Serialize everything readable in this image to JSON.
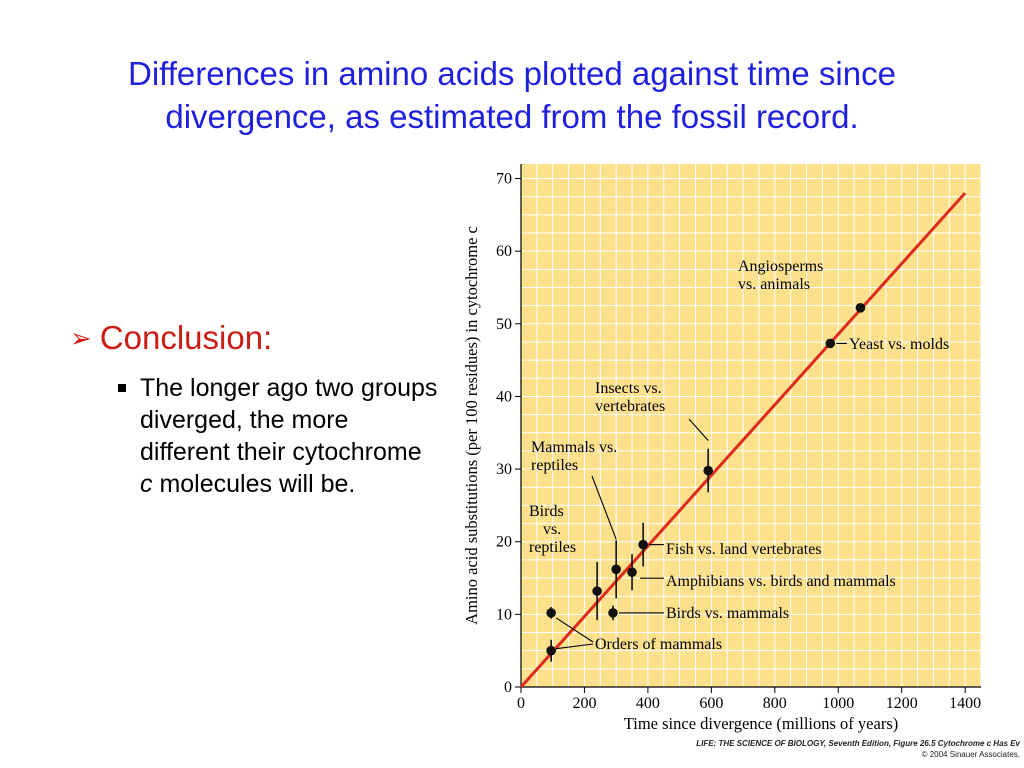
{
  "slide": {
    "title_line1": "Differences in amino acids plotted against time since",
    "title_line2": "divergence, as estimated from the fossil record.",
    "bullet_heading": "Conclusion:",
    "sub_bullet_text": "The longer ago two groups diverged, the more different their cytochrome ",
    "sub_bullet_italic": "c",
    "sub_bullet_end": " molecules will be.",
    "credit_line1": "LIFE: THE SCIENCE OF BIOLOGY, Seventh Edition, Figure 26.5 Cytochrome c Has Ev",
    "credit_line2": "© 2004 Sinauer Associates,"
  },
  "colors": {
    "title": "#1f1fe0",
    "bullet": "#cc1d14",
    "chart_background": "#fde08c",
    "gridline": "#ffffff",
    "fit_line": "#dd2a1d",
    "point": "#111111"
  },
  "chart_data": {
    "type": "scatter",
    "xlabel": "Time since divergence (millions of years)",
    "ylabel": "Amino acid substitutions (per 100 residues) in cytochrome c",
    "xlim": [
      0,
      1450
    ],
    "ylim": [
      0,
      72
    ],
    "x_ticks": [
      0,
      200,
      400,
      600,
      800,
      1000,
      1200,
      1400
    ],
    "y_ticks": [
      0,
      10,
      20,
      30,
      40,
      50,
      60,
      70
    ],
    "grid": true,
    "fit_line": {
      "x": [
        0,
        1400
      ],
      "y": [
        0,
        68
      ]
    },
    "points": [
      {
        "x": 95,
        "y": 10.2,
        "err": 0.8
      },
      {
        "x": 95,
        "y": 5.0,
        "err": 1.5
      },
      {
        "x": 240,
        "y": 13.2,
        "err": 4.0
      },
      {
        "x": 290,
        "y": 10.2,
        "err": 1.0
      },
      {
        "x": 300,
        "y": 16.2,
        "err": 4.0
      },
      {
        "x": 350,
        "y": 15.8,
        "err": 2.5
      },
      {
        "x": 385,
        "y": 19.6,
        "err": 3.0
      },
      {
        "x": 590,
        "y": 29.8,
        "err": 3.0
      },
      {
        "x": 975,
        "y": 47.3,
        "err": 0
      },
      {
        "x": 1070,
        "y": 52.2,
        "err": 0
      }
    ],
    "annotations": [
      {
        "lines": [
          "Angiosperms",
          "vs. animals"
        ]
      },
      {
        "lines": [
          "Yeast vs. molds"
        ]
      },
      {
        "lines": [
          "Insects vs.",
          "vertebrates"
        ]
      },
      {
        "lines": [
          "Mammals vs.",
          "reptiles"
        ]
      },
      {
        "lines": [
          "Birds",
          "vs.",
          "reptiles"
        ]
      },
      {
        "lines": [
          "Fish vs. land vertebrates"
        ]
      },
      {
        "lines": [
          "Amphibians vs. birds and mammals"
        ]
      },
      {
        "lines": [
          "Birds vs. mammals"
        ]
      },
      {
        "lines": [
          "Orders of mammals"
        ]
      }
    ]
  }
}
